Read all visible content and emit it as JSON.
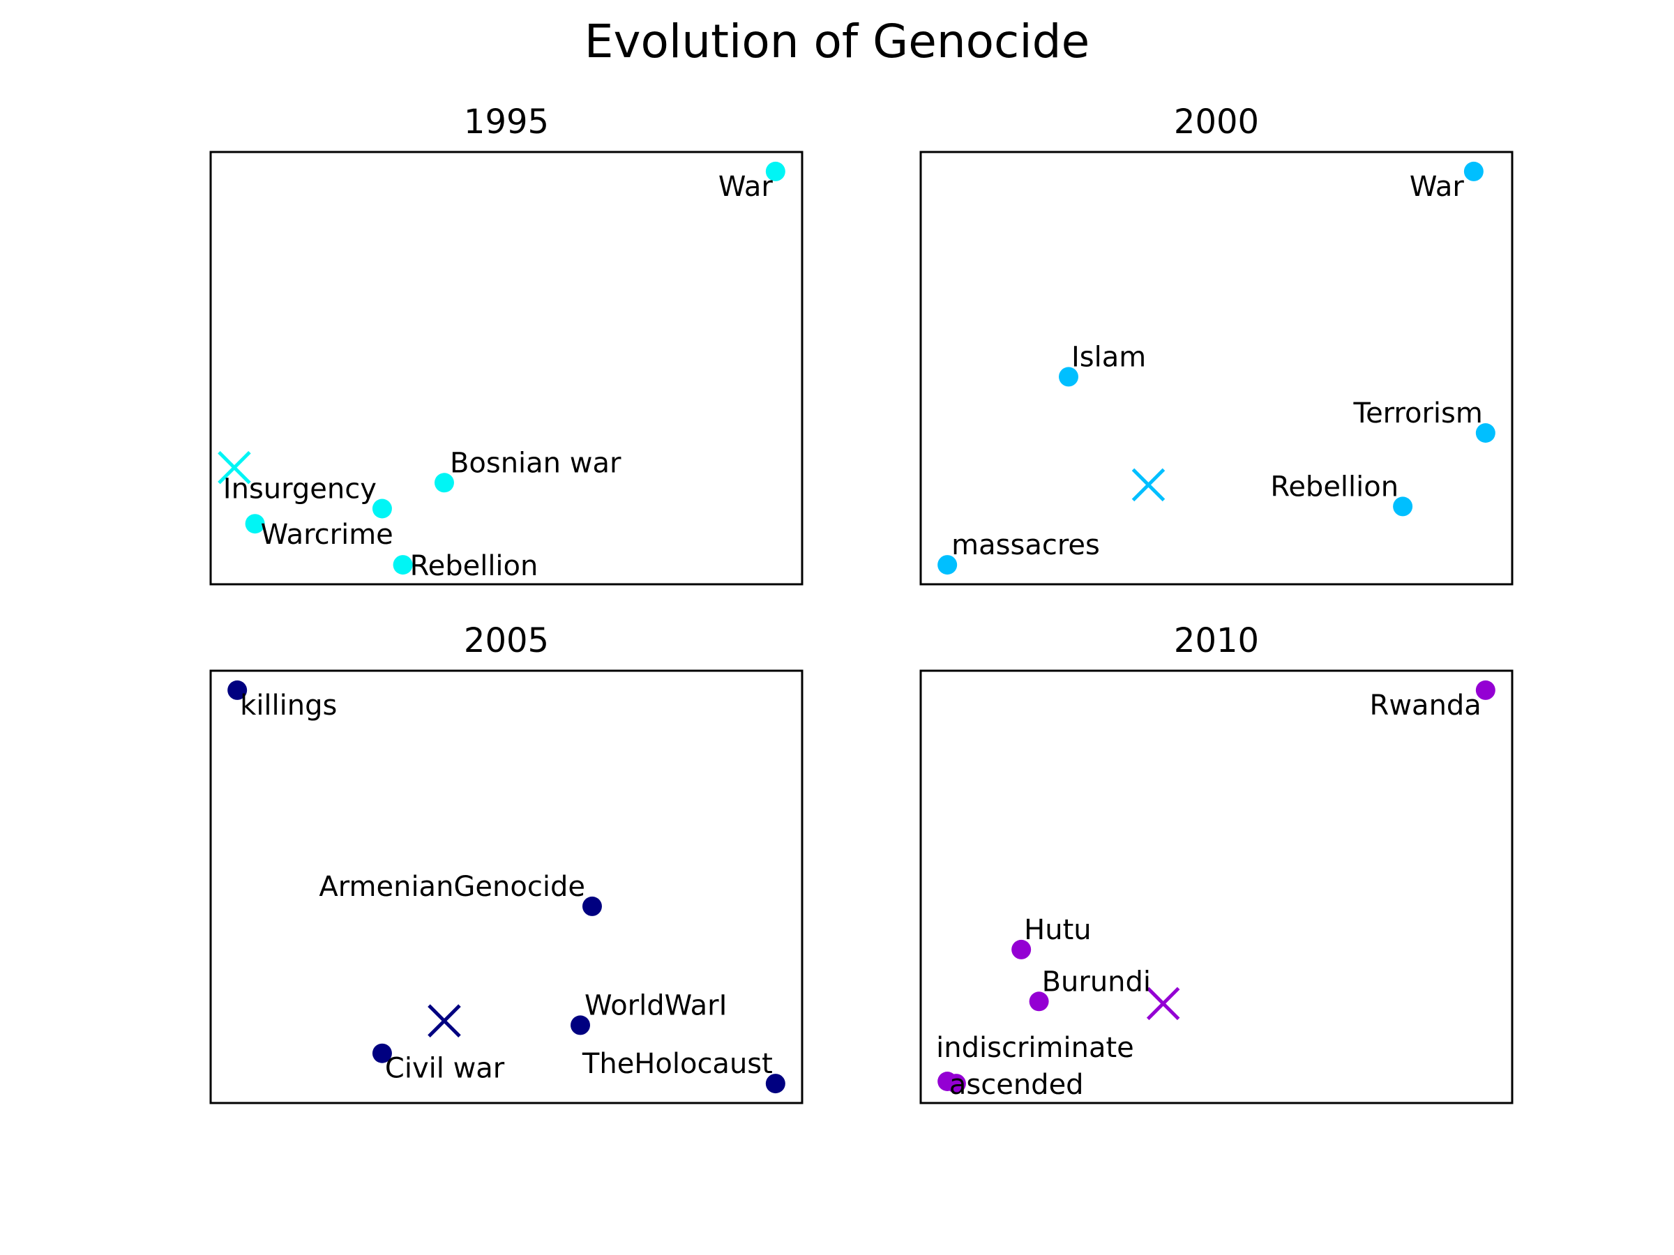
{
  "figure": {
    "title": "Evolution of Genocide"
  },
  "chart_data": [
    {
      "type": "scatter",
      "title": "1995",
      "color": "#00f5f5",
      "centroid": {
        "x": 0.04,
        "y": 0.27
      },
      "points": [
        {
          "label": "War",
          "x": 0.955,
          "y": 0.955
        },
        {
          "label": "Bosnian war",
          "x": 0.395,
          "y": 0.235
        },
        {
          "label": "Insurgency",
          "x": 0.29,
          "y": 0.175
        },
        {
          "label": "Warcrime",
          "x": 0.075,
          "y": 0.14
        },
        {
          "label": "Rebellion",
          "x": 0.325,
          "y": 0.045
        }
      ]
    },
    {
      "type": "scatter",
      "title": "2000",
      "color": "#00bfff",
      "centroid": {
        "x": 0.385,
        "y": 0.23
      },
      "points": [
        {
          "label": "War",
          "x": 0.935,
          "y": 0.955
        },
        {
          "label": "Islam",
          "x": 0.25,
          "y": 0.48
        },
        {
          "label": "Terrorism",
          "x": 0.955,
          "y": 0.35
        },
        {
          "label": "Rebellion",
          "x": 0.815,
          "y": 0.18
        },
        {
          "label": "massacres",
          "x": 0.045,
          "y": 0.045
        }
      ]
    },
    {
      "type": "scatter",
      "title": "2005",
      "color": "#000080",
      "centroid": {
        "x": 0.395,
        "y": 0.19
      },
      "points": [
        {
          "label": "killings",
          "x": 0.045,
          "y": 0.955
        },
        {
          "label": "ArmenianGenocide",
          "x": 0.645,
          "y": 0.455
        },
        {
          "label": "WorldWarI",
          "x": 0.625,
          "y": 0.18
        },
        {
          "label": "Civil war",
          "x": 0.29,
          "y": 0.115
        },
        {
          "label": "TheHolocaust",
          "x": 0.955,
          "y": 0.045
        }
      ]
    },
    {
      "type": "scatter",
      "title": "2010",
      "color": "#9400d3",
      "centroid": {
        "x": 0.41,
        "y": 0.23
      },
      "points": [
        {
          "label": "Rwanda",
          "x": 0.955,
          "y": 0.955
        },
        {
          "label": "Hutu",
          "x": 0.17,
          "y": 0.355
        },
        {
          "label": "Burundi",
          "x": 0.2,
          "y": 0.235
        },
        {
          "label": "indiscriminate",
          "x": 0.045,
          "y": 0.05
        },
        {
          "label": "ascended",
          "x": 0.06,
          "y": 0.045
        }
      ]
    }
  ]
}
